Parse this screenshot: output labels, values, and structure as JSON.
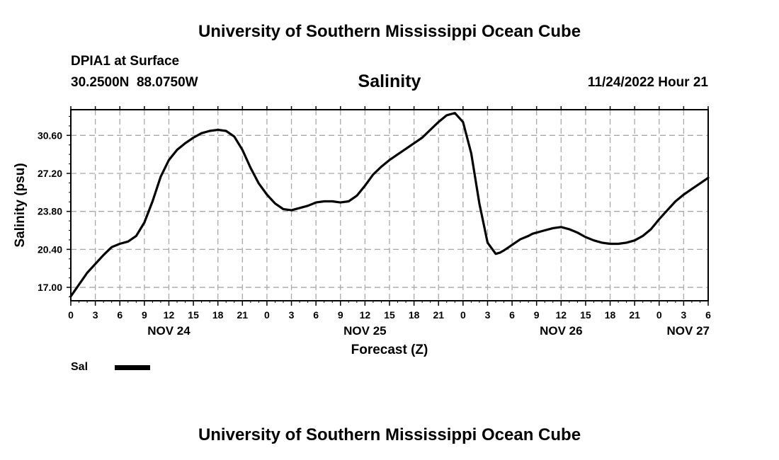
{
  "chart_data": {
    "type": "line",
    "title": "Salinity",
    "site_title": "University of Southern Mississippi Ocean Cube",
    "station": "DPIA1 at Surface",
    "coords": "30.2500N  88.0750W",
    "datetime": "11/24/2022 Hour 21",
    "xlabel": "Forecast (Z)",
    "ylabel": "Salinity (psu)",
    "xlim": [
      0,
      78
    ],
    "ylim": [
      15.8,
      32.9
    ],
    "yticks": [
      "17.00",
      "20.40",
      "23.80",
      "27.20",
      "30.60"
    ],
    "xtick_labels": [
      "0",
      "3",
      "6",
      "9",
      "12",
      "15",
      "18",
      "21",
      "0",
      "3",
      "6",
      "9",
      "12",
      "15",
      "18",
      "21",
      "0",
      "3",
      "6",
      "9",
      "12",
      "15",
      "18",
      "21",
      "0",
      "3",
      "6"
    ],
    "date_labels": [
      {
        "label": "NOV 24",
        "hour": 12
      },
      {
        "label": "NOV 25",
        "hour": 36
      },
      {
        "label": "NOV 26",
        "hour": 60
      },
      {
        "label": "NOV 27",
        "hour": 78
      }
    ],
    "grid": true,
    "legend_position": "bottom-left",
    "series": [
      {
        "name": "Sal",
        "x": [
          0,
          2,
          4,
          5,
          6,
          7,
          8,
          9,
          10,
          11,
          12,
          13,
          14,
          15,
          16,
          17,
          18,
          19,
          20,
          21,
          22,
          23,
          24,
          25,
          26,
          27,
          28,
          29,
          30,
          31,
          32,
          33,
          34,
          35,
          36,
          37,
          38,
          39,
          40,
          41,
          42,
          43,
          44,
          45,
          46,
          47,
          48,
          49,
          50,
          51,
          52,
          52.5,
          53,
          54,
          55,
          56,
          56.5,
          57,
          58,
          59,
          60,
          61,
          62,
          63,
          64,
          65,
          66,
          67,
          68,
          69,
          70,
          71,
          72,
          73,
          74,
          75,
          76,
          77,
          78
        ],
        "values": [
          16.2,
          18.3,
          19.9,
          20.6,
          20.9,
          21.1,
          21.6,
          22.8,
          24.7,
          26.9,
          28.4,
          29.3,
          29.9,
          30.4,
          30.8,
          31.0,
          31.1,
          31.0,
          30.5,
          29.3,
          27.7,
          26.3,
          25.3,
          24.5,
          24.0,
          23.9,
          24.1,
          24.3,
          24.6,
          24.7,
          24.7,
          24.6,
          24.7,
          25.2,
          26.1,
          27.1,
          27.8,
          28.4,
          28.9,
          29.4,
          29.9,
          30.4,
          31.1,
          31.8,
          32.4,
          32.6,
          31.8,
          29.0,
          24.5,
          21.0,
          20.0,
          20.1,
          20.3,
          20.8,
          21.3,
          21.6,
          21.8,
          21.9,
          22.1,
          22.3,
          22.4,
          22.2,
          21.9,
          21.5,
          21.2,
          21.0,
          20.9,
          20.9,
          21.0,
          21.2,
          21.6,
          22.2,
          23.1,
          23.9,
          24.7,
          25.3,
          25.8,
          26.3,
          26.8
        ]
      }
    ]
  },
  "legend": {
    "label": "Sal",
    "color": "#000000"
  },
  "colors": {
    "line": "#000000",
    "grid": "#a8a8a8",
    "frame": "#000000"
  }
}
